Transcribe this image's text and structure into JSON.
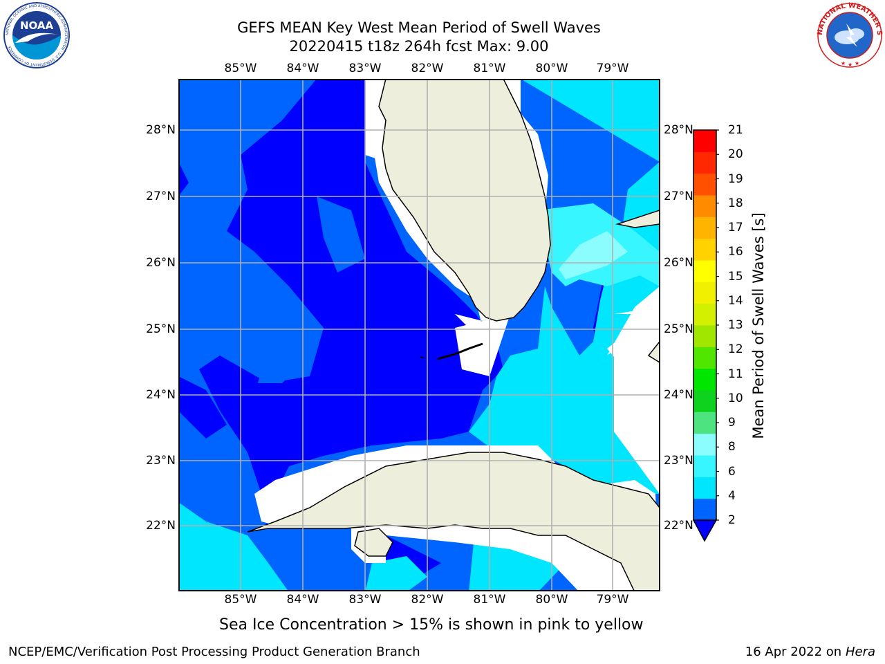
{
  "header": {
    "title_line1": "GEFS MEAN Key West Mean Period of Swell Waves",
    "title_line2": "20220415 t18z 264h fcst   Max: 9.00"
  },
  "logos": {
    "noaa_text": "NOAA",
    "noaa_ring_text": "NATIONAL OCEANIC AND ATMOSPHERIC ADMINISTRATION · U.S. DEPARTMENT OF COMMERCE",
    "nws_ring_text": "NATIONAL WEATHER SERVICE"
  },
  "map": {
    "lon_labels": [
      "85°W",
      "84°W",
      "83°W",
      "82°W",
      "81°W",
      "80°W",
      "79°W"
    ],
    "lat_labels": [
      "28°N",
      "27°N",
      "26°N",
      "25°N",
      "24°N",
      "23°N",
      "22°N"
    ],
    "land_color": "#eeeedd",
    "ocean_base_color": "#0000ff"
  },
  "colorbar": {
    "label": "Mean Period of Swell Waves [s]",
    "ticks": [
      "2",
      "4",
      "6",
      "8",
      "9",
      "10",
      "11",
      "12",
      "13",
      "14",
      "15",
      "16",
      "17",
      "18",
      "19",
      "20",
      "21"
    ],
    "colors": [
      "#0064ff",
      "#00e6ff",
      "#37f6ff",
      "#8cfdff",
      "#4ce380",
      "#0fd21e",
      "#00e600",
      "#50e600",
      "#a0e600",
      "#d2f000",
      "#f0f000",
      "#ffff00",
      "#ffd200",
      "#ffb400",
      "#ff8c00",
      "#ff5000",
      "#ff2800",
      "#ff0000"
    ],
    "extend_color": "#0000ff"
  },
  "caption": "Sea Ice Concentration > 15% is shown in pink to yellow",
  "footer": {
    "left": "NCEP/EMC/Verification Post Processing Product Generation Branch",
    "date": "16 Apr 2022 on ",
    "host": "Hera"
  }
}
